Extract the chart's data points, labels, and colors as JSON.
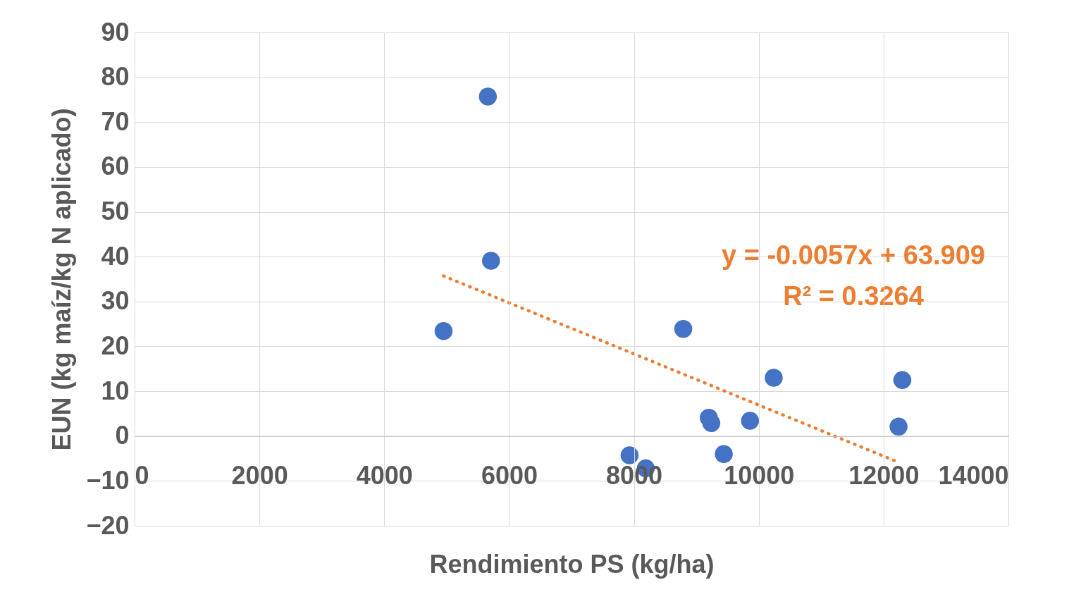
{
  "chart_data": {
    "type": "scatter",
    "xlabel": "Rendimiento PS (kg/ha)",
    "ylabel": "EUN (kg maíz/kg N aplicado)",
    "xlim": [
      0,
      14000
    ],
    "xticks": [
      0,
      2000,
      4000,
      6000,
      8000,
      10000,
      12000,
      14000
    ],
    "ylim": [
      -20,
      90
    ],
    "yticks": [
      -20,
      -10,
      0,
      10,
      20,
      30,
      40,
      50,
      60,
      70,
      80,
      90
    ],
    "grid": true,
    "marker": "circle",
    "annotations": [
      "y = -0.0057x + 63.909",
      "R² = 0.3264"
    ],
    "series": [
      {
        "color": "#4472c4",
        "x": [
          4950,
          5660,
          5710,
          7930,
          8190,
          8790,
          9200,
          9240,
          9440,
          9860,
          10240,
          12240,
          12300
        ],
        "values": [
          23.4,
          75.7,
          39.1,
          -4.3,
          -7.2,
          23.9,
          4.1,
          2.9,
          -4.0,
          3.4,
          13.0,
          2.1,
          12.5
        ]
      },
      {
        "type": "line",
        "marker": "none",
        "color": "#ed7d31",
        "line_style": "dotted",
        "x": [
          4950,
          12250
        ],
        "values": [
          35.7,
          -5.9
        ]
      }
    ]
  }
}
